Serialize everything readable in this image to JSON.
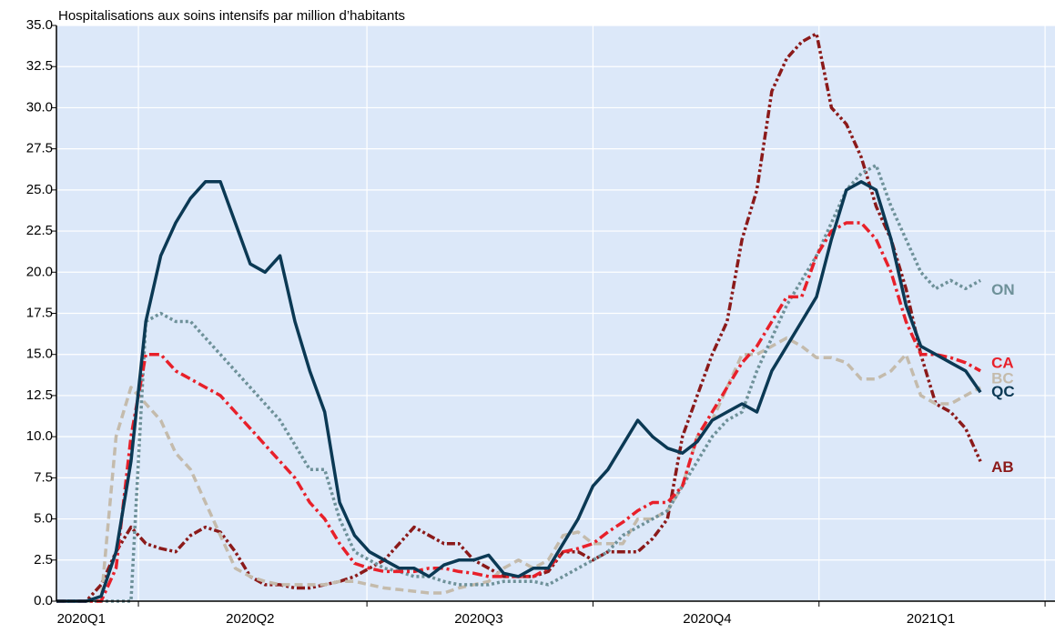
{
  "chart_data": {
    "type": "line",
    "title": "Hospitalisations aux soins intensifs par million d’habitants",
    "x": [
      0,
      6,
      12,
      18,
      24,
      30,
      36,
      42,
      48,
      54,
      60,
      66,
      72,
      78,
      84,
      90,
      96,
      102,
      108,
      114,
      120,
      126,
      132,
      138,
      144,
      150,
      156,
      162,
      168,
      174,
      180,
      186,
      192,
      198,
      204,
      210,
      216,
      222,
      228,
      234,
      240,
      246,
      252,
      258,
      264,
      270,
      276,
      282,
      288,
      294,
      300,
      306,
      312,
      318,
      324,
      330,
      336,
      342,
      348,
      354,
      360,
      366,
      372
    ],
    "xlim": [
      0,
      402
    ],
    "xticks": [
      {
        "value": 10,
        "label": "2020Q1"
      },
      {
        "value": 78,
        "label": "2020Q2"
      },
      {
        "value": 170,
        "label": "2020Q3"
      },
      {
        "value": 262,
        "label": "2020Q4"
      },
      {
        "value": 352,
        "label": "2021Q1"
      }
    ],
    "xgrid": [
      33,
      125,
      216,
      307,
      398
    ],
    "ylim": [
      0,
      35
    ],
    "yticks": [
      {
        "value": 0,
        "label": "0.0"
      },
      2.5,
      {
        "value": 5,
        "label": "5.0"
      },
      7.5,
      {
        "value": 10,
        "label": "10.0"
      },
      12.5,
      {
        "value": 15,
        "label": "15.0"
      },
      17.5,
      {
        "value": 20,
        "label": "20.0"
      },
      22.5,
      {
        "value": 25,
        "label": "25.0"
      },
      27.5,
      {
        "value": 30,
        "label": "30.0"
      },
      32.5,
      {
        "value": 35,
        "label": "35.0"
      }
    ],
    "grid": true,
    "series": [
      {
        "name": "QC",
        "color": "#0b3954",
        "values": [
          0,
          0,
          0,
          0.3,
          3,
          8.5,
          17,
          21,
          23,
          24.5,
          25.5,
          25.5,
          23,
          20.5,
          20,
          21,
          17,
          14,
          11.5,
          6,
          4,
          3,
          2.5,
          2,
          2,
          1.5,
          2.2,
          2.5,
          2.5,
          2.8,
          1.7,
          1.5,
          2,
          2,
          3.5,
          5,
          7,
          8,
          9.5,
          11,
          10,
          9.3,
          9,
          9.7,
          11,
          11.5,
          12,
          11.5,
          14,
          15.5,
          17,
          18.5,
          22,
          25,
          25.5,
          25,
          22,
          18,
          15.5,
          15,
          14.5,
          14,
          12.7
        ]
      },
      {
        "name": "CA",
        "color": "#e8202a",
        "values": [
          0,
          0,
          0,
          0,
          2,
          10,
          15,
          15,
          14,
          13.5,
          13,
          12.5,
          11.5,
          10.5,
          9.5,
          8.5,
          7.5,
          6,
          5,
          3.5,
          2.3,
          2,
          1.8,
          1.8,
          1.8,
          2,
          2,
          1.8,
          1.7,
          1.5,
          1.5,
          1.5,
          1.5,
          2,
          3,
          3.2,
          3.5,
          4.2,
          4.8,
          5.5,
          6,
          6,
          7,
          10,
          11.5,
          13,
          14.5,
          15.5,
          17,
          18.5,
          18.5,
          21,
          22.5,
          23,
          23,
          22,
          20,
          17,
          15,
          15,
          14.8,
          14.5,
          14
        ]
      },
      {
        "name": "ON",
        "color": "#6e9199",
        "values": [
          0,
          0,
          0,
          0,
          0,
          0,
          17,
          17.5,
          17,
          17,
          16,
          15,
          14,
          13,
          12,
          11,
          9.5,
          8,
          8,
          5,
          3,
          2.5,
          2,
          1.8,
          1.5,
          1.5,
          1.2,
          1,
          1,
          1,
          1.2,
          1.2,
          1.2,
          1,
          1.5,
          2,
          2.5,
          3,
          4,
          4.5,
          5,
          5.5,
          7,
          8.5,
          10,
          11,
          11.5,
          14,
          16,
          18,
          19.5,
          21,
          23,
          25,
          26,
          26.5,
          24,
          22,
          20,
          19,
          19.5,
          19,
          19.5
        ]
      },
      {
        "name": "BC",
        "color": "#c4bbac",
        "values": [
          0,
          0,
          0,
          0,
          10,
          13,
          12,
          11,
          9,
          8,
          6,
          4,
          2,
          1.5,
          1.2,
          1,
          1,
          1,
          1,
          1.2,
          1.2,
          1,
          0.8,
          0.7,
          0.6,
          0.5,
          0.5,
          0.8,
          1,
          1.2,
          2,
          2.5,
          2,
          2.5,
          4,
          4.2,
          3.5,
          3.5,
          3.5,
          5,
          5,
          5.5,
          7,
          10,
          11,
          13,
          15,
          15,
          15.5,
          16,
          15.5,
          14.8,
          14.8,
          14.5,
          13.5,
          13.5,
          14,
          15,
          12.5,
          12,
          12,
          12.5,
          13
        ]
      },
      {
        "name": "AB",
        "color": "#8b1a1a",
        "values": [
          0,
          0,
          0,
          1,
          3,
          4.5,
          3.5,
          3.2,
          3,
          4,
          4.5,
          4.2,
          3,
          1.5,
          1,
          1,
          0.8,
          0.8,
          1,
          1.2,
          1.5,
          2,
          2.5,
          3.5,
          4.5,
          4,
          3.5,
          3.5,
          2.5,
          2,
          1.5,
          1.5,
          1.5,
          1.8,
          3,
          3,
          2.5,
          3,
          3,
          3,
          3.8,
          5,
          10,
          12.5,
          15,
          17,
          22,
          25,
          31,
          33,
          34,
          34.5,
          30,
          29,
          27,
          24,
          22,
          19,
          15,
          12,
          11.5,
          10.5,
          8.5
        ]
      }
    ]
  }
}
